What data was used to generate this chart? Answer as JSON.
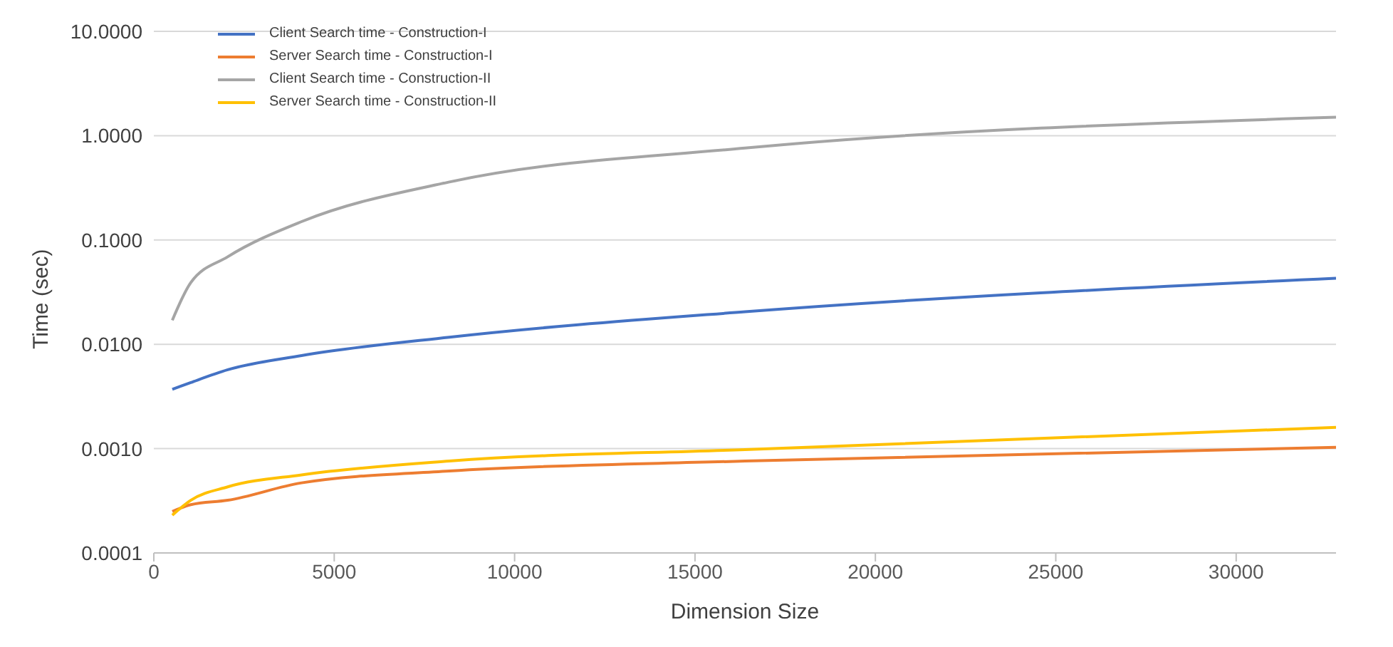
{
  "chart_data": {
    "type": "line",
    "xlabel": "Dimension Size",
    "ylabel": "Time (sec)",
    "log": "y",
    "grid": "y",
    "legend": "top left",
    "marker": "none",
    "line_style": "solid",
    "x": [
      512,
      1024,
      2048,
      4096,
      8192,
      16384,
      32768
    ],
    "xlim": [
      0,
      32768
    ],
    "xticks": [
      0,
      5000,
      10000,
      15000,
      20000,
      25000,
      30000
    ],
    "ylim": [
      0.0001,
      10
    ],
    "yticks": [
      {
        "value": 0.0001,
        "label": "0.0001"
      },
      {
        "value": 0.001,
        "label": "0.0010"
      },
      {
        "value": 0.01,
        "label": "0.0100"
      },
      {
        "value": 0.1,
        "label": "0.1000"
      },
      {
        "value": 1,
        "label": "1.0000"
      },
      {
        "value": 10,
        "label": "10.0000"
      }
    ],
    "series": [
      {
        "name": "Client Search time - Construction-I",
        "color": "#4472c4",
        "values": [
          0.0037,
          0.0043,
          0.0057,
          0.0078,
          0.0117,
          0.0205,
          0.043
        ]
      },
      {
        "name": "Server Search time - Construction-I",
        "color": "#ed7d31",
        "values": [
          0.00025,
          0.00029,
          0.00032,
          0.00047,
          0.00061,
          0.00076,
          0.00103
        ]
      },
      {
        "name": "Client Search time - Construction-II",
        "color": "#a5a5a5",
        "values": [
          0.017,
          0.039,
          0.069,
          0.15,
          0.36,
          0.76,
          1.5
        ]
      },
      {
        "name": "Server Search time - Construction-II",
        "color": "#ffc000",
        "values": [
          0.00023,
          0.00032,
          0.00043,
          0.00056,
          0.00076,
          0.00098,
          0.0016
        ]
      }
    ]
  }
}
